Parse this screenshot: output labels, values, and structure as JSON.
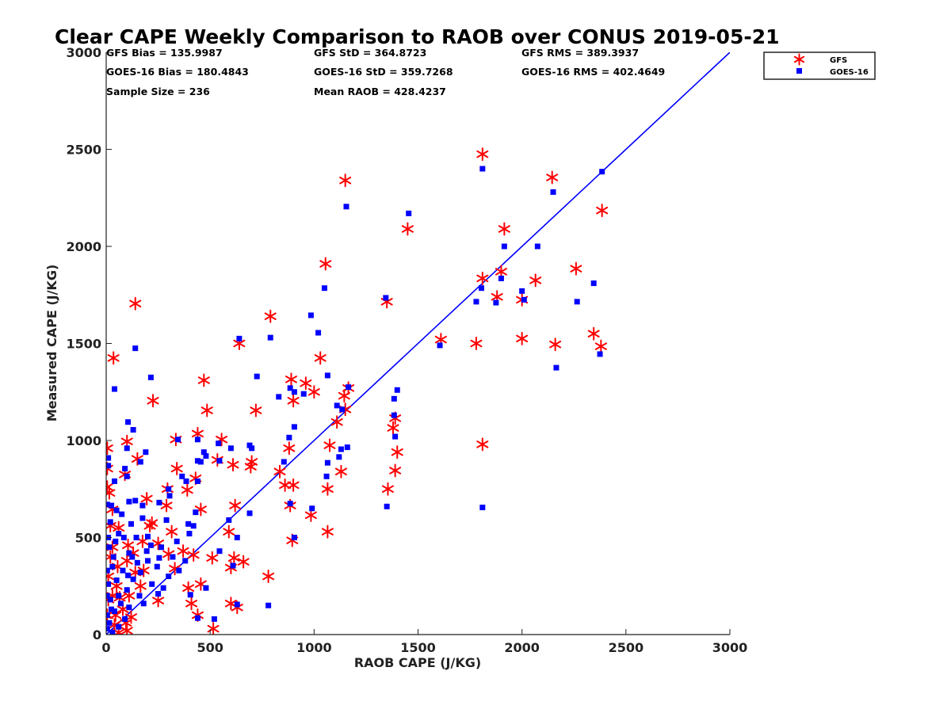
{
  "chart_data": {
    "type": "scatter",
    "title": "Clear CAPE Weekly Comparison to RAOB over CONUS 2019-05-21",
    "xlabel": "RAOB CAPE (J/KG)",
    "ylabel": "Measured CAPE (J/KG)",
    "xlim": [
      0,
      3000
    ],
    "ylim": [
      0,
      3000
    ],
    "xticks": [
      0,
      500,
      1000,
      1500,
      2000,
      2500,
      3000
    ],
    "yticks": [
      0,
      500,
      1000,
      1500,
      2000,
      2500,
      3000
    ],
    "legend": "top-right",
    "grid": false,
    "stats": [
      "GFS Bias = 135.9987",
      "GOES-16 Bias = 180.4843",
      "Sample Size = 236",
      "GFS StD = 364.8723",
      "GOES-16 StD = 359.7268",
      "Mean RAOB = 428.4237",
      "GFS RMS = 389.3937",
      "GOES-16 RMS = 402.4649"
    ],
    "reference_line": {
      "name": "1:1",
      "color": "#0000ff",
      "from": [
        0,
        0
      ],
      "to": [
        3000,
        3000
      ]
    },
    "series": [
      {
        "name": "GFS",
        "marker": "asterisk",
        "color": "#ff0000",
        "points": [
          [
            1810,
            2475
          ],
          [
            1150,
            2340
          ],
          [
            2145,
            2355
          ],
          [
            2385,
            2185
          ],
          [
            1450,
            2090
          ],
          [
            1915,
            2090
          ],
          [
            1055,
            1910
          ],
          [
            1810,
            1835
          ],
          [
            1900,
            1870
          ],
          [
            2260,
            1885
          ],
          [
            2065,
            1825
          ],
          [
            1880,
            1740
          ],
          [
            1350,
            1715
          ],
          [
            140,
            1705
          ],
          [
            790,
            1640
          ],
          [
            2000,
            1725
          ],
          [
            1610,
            1520
          ],
          [
            1780,
            1500
          ],
          [
            2000,
            1525
          ],
          [
            2160,
            1495
          ],
          [
            2345,
            1550
          ],
          [
            2380,
            1485
          ],
          [
            35,
            1425
          ],
          [
            640,
            1500
          ],
          [
            1030,
            1425
          ],
          [
            960,
            1295
          ],
          [
            1000,
            1250
          ],
          [
            890,
            1315
          ],
          [
            900,
            1205
          ],
          [
            1145,
            1230
          ],
          [
            1165,
            1270
          ],
          [
            1150,
            1160
          ],
          [
            470,
            1310
          ],
          [
            485,
            1155
          ],
          [
            720,
            1155
          ],
          [
            225,
            1205
          ],
          [
            1110,
            1095
          ],
          [
            1390,
            1115
          ],
          [
            1380,
            1065
          ],
          [
            1400,
            940
          ],
          [
            1075,
            975
          ],
          [
            1810,
            980
          ],
          [
            1130,
            840
          ],
          [
            1390,
            845
          ],
          [
            1355,
            750
          ],
          [
            1065,
            750
          ],
          [
            335,
            1005
          ],
          [
            440,
            1035
          ],
          [
            555,
            1005
          ],
          [
            700,
            890
          ],
          [
            695,
            865
          ],
          [
            880,
            960
          ],
          [
            835,
            840
          ],
          [
            860,
            770
          ],
          [
            900,
            770
          ],
          [
            885,
            665
          ],
          [
            985,
            615
          ],
          [
            895,
            485
          ],
          [
            1065,
            530
          ],
          [
            100,
            995
          ],
          [
            150,
            905
          ],
          [
            5,
            960
          ],
          [
            5,
            855
          ],
          [
            90,
            825
          ],
          [
            340,
            855
          ],
          [
            430,
            805
          ],
          [
            295,
            750
          ],
          [
            390,
            745
          ],
          [
            610,
            875
          ],
          [
            620,
            665
          ],
          [
            455,
            645
          ],
          [
            195,
            700
          ],
          [
            220,
            575
          ],
          [
            315,
            530
          ],
          [
            330,
            340
          ],
          [
            370,
            430
          ],
          [
            420,
            410
          ],
          [
            510,
            395
          ],
          [
            535,
            900
          ],
          [
            590,
            530
          ],
          [
            600,
            345
          ],
          [
            615,
            395
          ],
          [
            660,
            375
          ],
          [
            780,
            300
          ],
          [
            600,
            160
          ],
          [
            630,
            140
          ],
          [
            455,
            260
          ],
          [
            395,
            240
          ],
          [
            410,
            160
          ],
          [
            440,
            100
          ],
          [
            515,
            30
          ],
          [
            250,
            470
          ],
          [
            290,
            665
          ],
          [
            300,
            415
          ],
          [
            250,
            175
          ],
          [
            210,
            560
          ],
          [
            175,
            480
          ],
          [
            180,
            330
          ],
          [
            165,
            250
          ],
          [
            105,
            460
          ],
          [
            60,
            550
          ],
          [
            30,
            450
          ],
          [
            20,
            400
          ],
          [
            50,
            250
          ],
          [
            30,
            200
          ],
          [
            10,
            300
          ],
          [
            100,
            380
          ],
          [
            130,
            420
          ],
          [
            140,
            320
          ],
          [
            110,
            200
          ],
          [
            80,
            130
          ],
          [
            45,
            100
          ],
          [
            15,
            730
          ],
          [
            30,
            645
          ],
          [
            55,
            350
          ],
          [
            65,
            190
          ],
          [
            95,
            60
          ],
          [
            5,
            760
          ],
          [
            20,
            560
          ],
          [
            10,
            180
          ],
          [
            40,
            50
          ],
          [
            120,
            90
          ],
          [
            100,
            20
          ],
          [
            60,
            10
          ],
          [
            5,
            100
          ]
        ]
      },
      {
        "name": "GOES-16",
        "marker": "square",
        "color": "#0000ff",
        "points": [
          [
            1810,
            2400
          ],
          [
            2385,
            2385
          ],
          [
            1155,
            2205
          ],
          [
            2150,
            2280
          ],
          [
            1455,
            2170
          ],
          [
            1915,
            2000
          ],
          [
            2075,
            2000
          ],
          [
            1805,
            1785
          ],
          [
            1050,
            1785
          ],
          [
            1900,
            1835
          ],
          [
            2345,
            1810
          ],
          [
            2000,
            1770
          ],
          [
            1345,
            1735
          ],
          [
            1780,
            1715
          ],
          [
            2265,
            1715
          ],
          [
            1875,
            1710
          ],
          [
            2010,
            1725
          ],
          [
            985,
            1645
          ],
          [
            1020,
            1555
          ],
          [
            790,
            1530
          ],
          [
            640,
            1525
          ],
          [
            1605,
            1490
          ],
          [
            140,
            1475
          ],
          [
            2375,
            1445
          ],
          [
            2165,
            1375
          ],
          [
            1350,
            660
          ],
          [
            1810,
            655
          ],
          [
            40,
            1265
          ],
          [
            215,
            1325
          ],
          [
            725,
            1330
          ],
          [
            1065,
            1335
          ],
          [
            905,
            1250
          ],
          [
            830,
            1225
          ],
          [
            950,
            1240
          ],
          [
            885,
            1270
          ],
          [
            1110,
            1180
          ],
          [
            1165,
            1275
          ],
          [
            1135,
            1160
          ],
          [
            1400,
            1260
          ],
          [
            1385,
            1215
          ],
          [
            1385,
            1130
          ],
          [
            1390,
            1020
          ],
          [
            1160,
            965
          ],
          [
            1130,
            955
          ],
          [
            1120,
            915
          ],
          [
            1065,
            885
          ],
          [
            1060,
            815
          ],
          [
            905,
            1070
          ],
          [
            880,
            1015
          ],
          [
            700,
            960
          ],
          [
            690,
            975
          ],
          [
            855,
            890
          ],
          [
            540,
            985
          ],
          [
            545,
            895
          ],
          [
            590,
            590
          ],
          [
            600,
            960
          ],
          [
            440,
            1005
          ],
          [
            345,
            1005
          ],
          [
            470,
            940
          ],
          [
            480,
            920
          ],
          [
            440,
            895
          ],
          [
            365,
            815
          ],
          [
            385,
            790
          ],
          [
            395,
            570
          ],
          [
            400,
            520
          ],
          [
            420,
            560
          ],
          [
            430,
            630
          ],
          [
            440,
            790
          ],
          [
            455,
            890
          ],
          [
            610,
            355
          ],
          [
            630,
            500
          ],
          [
            690,
            625
          ],
          [
            630,
            155
          ],
          [
            545,
            430
          ],
          [
            480,
            240
          ],
          [
            405,
            205
          ],
          [
            440,
            85
          ],
          [
            520,
            80
          ],
          [
            780,
            150
          ],
          [
            885,
            675
          ],
          [
            990,
            650
          ],
          [
            905,
            500
          ],
          [
            105,
            1095
          ],
          [
            130,
            1055
          ],
          [
            190,
            940
          ],
          [
            165,
            890
          ],
          [
            100,
            960
          ],
          [
            90,
            855
          ],
          [
            100,
            815
          ],
          [
            10,
            910
          ],
          [
            10,
            870
          ],
          [
            40,
            790
          ],
          [
            5,
            670
          ],
          [
            25,
            665
          ],
          [
            50,
            640
          ],
          [
            110,
            685
          ],
          [
            140,
            690
          ],
          [
            175,
            665
          ],
          [
            255,
            680
          ],
          [
            290,
            590
          ],
          [
            300,
            750
          ],
          [
            305,
            715
          ],
          [
            215,
            460
          ],
          [
            255,
            395
          ],
          [
            200,
            505
          ],
          [
            195,
            430
          ],
          [
            175,
            600
          ],
          [
            145,
            500
          ],
          [
            120,
            570
          ],
          [
            75,
            620
          ],
          [
            60,
            520
          ],
          [
            35,
            400
          ],
          [
            15,
            450
          ],
          [
            30,
            350
          ],
          [
            50,
            280
          ],
          [
            80,
            330
          ],
          [
            110,
            420
          ],
          [
            150,
            370
          ],
          [
            130,
            285
          ],
          [
            100,
            230
          ],
          [
            70,
            160
          ],
          [
            40,
            120
          ],
          [
            20,
            180
          ],
          [
            10,
            260
          ],
          [
            90,
            80
          ],
          [
            60,
            40
          ],
          [
            30,
            10
          ],
          [
            15,
            60
          ],
          [
            110,
            140
          ],
          [
            160,
            200
          ],
          [
            220,
            260
          ],
          [
            250,
            210
          ],
          [
            300,
            300
          ],
          [
            320,
            400
          ],
          [
            340,
            480
          ],
          [
            380,
            380
          ],
          [
            265,
            450
          ],
          [
            5,
            30
          ],
          [
            5,
            100
          ],
          [
            5,
            200
          ],
          [
            5,
            330
          ],
          [
            10,
            500
          ],
          [
            20,
            580
          ],
          [
            45,
            480
          ],
          [
            85,
            500
          ],
          [
            125,
            400
          ],
          [
            165,
            320
          ],
          [
            105,
            305
          ],
          [
            60,
            200
          ],
          [
            25,
            130
          ],
          [
            180,
            160
          ],
          [
            200,
            380
          ],
          [
            245,
            350
          ],
          [
            275,
            240
          ],
          [
            350,
            330
          ]
        ]
      }
    ]
  }
}
